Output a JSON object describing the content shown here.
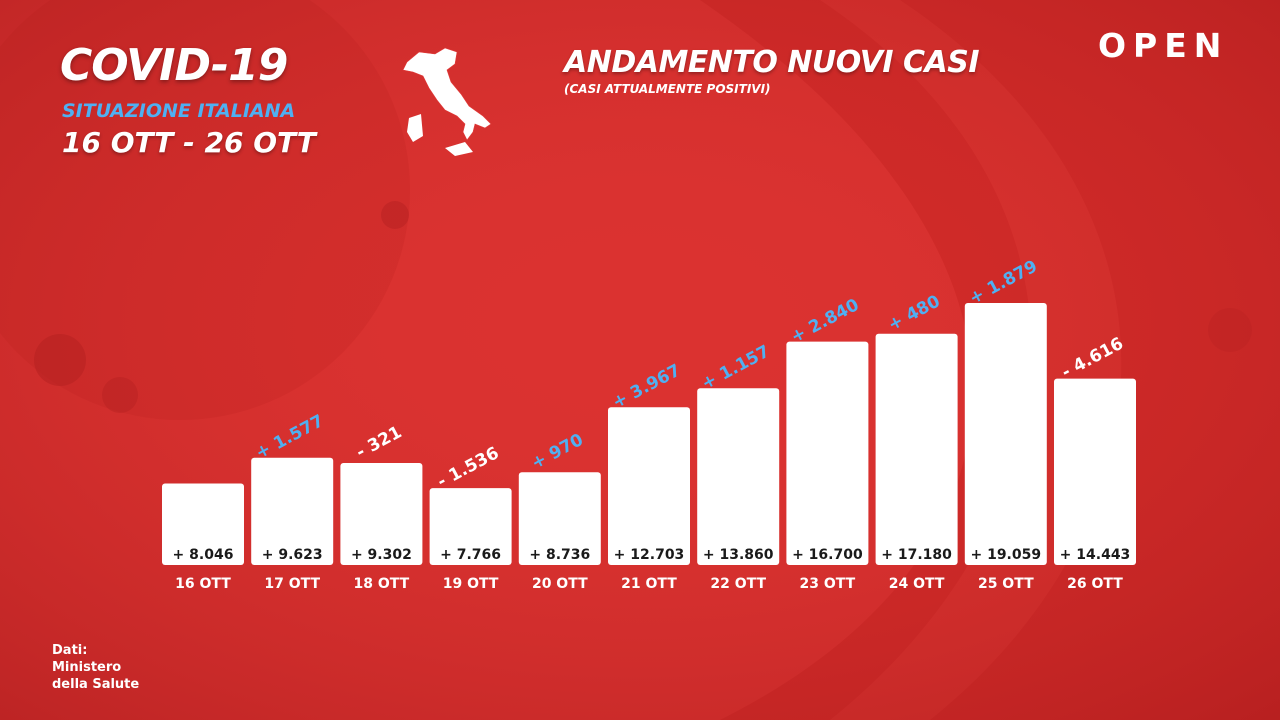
{
  "header": {
    "title": "COVID-19",
    "subtitle": "SITUAZIONE ITALIANA",
    "dates": "16 OTT - 26 OTT"
  },
  "brand": {
    "logo": "OPEN"
  },
  "map": {
    "icon": "italy-map-icon"
  },
  "source": {
    "lines": [
      "Dati:",
      "Ministero",
      "della Salute"
    ]
  },
  "colors": {
    "background": "#db3230",
    "accent": "#4fb0f2",
    "bar": "#ffffff",
    "text": "#ffffff",
    "negative_label": "#ffffff"
  },
  "chart_data": {
    "type": "bar",
    "title": "ANDAMENTO NUOVI CASI",
    "subtitle": "(CASI ATTUALMENTE POSITIVI)",
    "categories": [
      "16 OTT",
      "17 OTT",
      "18 OTT",
      "19 OTT",
      "20 OTT",
      "21 OTT",
      "22 OTT",
      "23 OTT",
      "24 OTT",
      "25 OTT",
      "26 OTT"
    ],
    "values": [
      8046,
      9623,
      9302,
      7766,
      8736,
      12703,
      13860,
      16700,
      17180,
      19059,
      14443
    ],
    "value_labels": [
      "+ 8.046",
      "+ 9.623",
      "+ 9.302",
      "+ 7.766",
      "+ 8.736",
      "+ 12.703",
      "+ 13.860",
      "+ 16.700",
      "+ 17.180",
      "+ 19.059",
      "+ 14.443"
    ],
    "delta_labels": [
      "",
      "+ 1.577",
      "- 321",
      "- 1.536",
      "+ 970",
      "+ 3.967",
      "+ 1.157",
      "+ 2.840",
      "+ 480",
      "+ 1.879",
      "- 4.616"
    ],
    "deltas": [
      null,
      1577,
      -321,
      -1536,
      970,
      3967,
      1157,
      2840,
      480,
      1879,
      -4616
    ],
    "grid": false,
    "legend": "none"
  }
}
